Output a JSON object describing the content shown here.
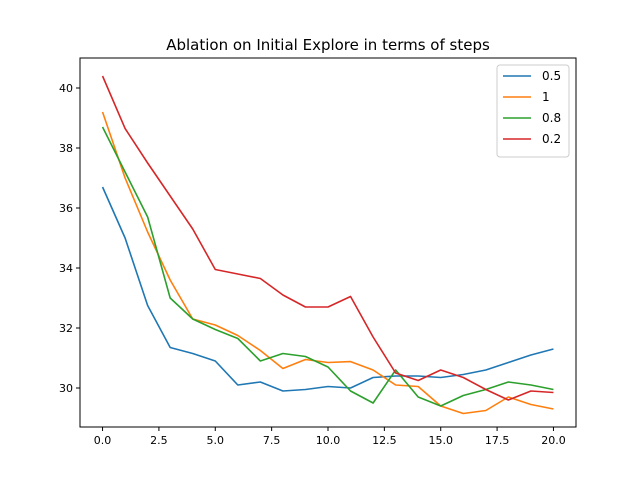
{
  "chart_data": {
    "type": "line",
    "title": "Ablation on Initial Explore in terms of steps",
    "xlabel": "",
    "ylabel": "",
    "xlim": [
      -1.0,
      21.0
    ],
    "ylim": [
      28.7,
      41.0
    ],
    "xticks": [
      0.0,
      2.5,
      5.0,
      7.5,
      10.0,
      12.5,
      15.0,
      17.5,
      20.0
    ],
    "xtick_labels": [
      "0.0",
      "2.5",
      "5.0",
      "7.5",
      "10.0",
      "12.5",
      "15.0",
      "17.5",
      "20.0"
    ],
    "yticks": [
      30,
      32,
      34,
      36,
      38,
      40
    ],
    "ytick_labels": [
      "30",
      "32",
      "34",
      "36",
      "38",
      "40"
    ],
    "grid": false,
    "legend_position": "top-right",
    "x": [
      0,
      1,
      2,
      3,
      4,
      5,
      6,
      7,
      8,
      9,
      10,
      11,
      12,
      13,
      14,
      15,
      16,
      17,
      18,
      19,
      20
    ],
    "series": [
      {
        "name": "0.5",
        "color": "#1f77b4",
        "values": [
          36.7,
          35.0,
          32.75,
          31.35,
          31.15,
          30.9,
          30.1,
          30.2,
          29.9,
          29.95,
          30.05,
          30.0,
          30.35,
          30.4,
          30.4,
          30.35,
          30.45,
          30.6,
          30.85,
          31.1,
          31.3
        ]
      },
      {
        "name": "1",
        "color": "#ff7f0e",
        "values": [
          39.2,
          37.0,
          35.2,
          33.6,
          32.3,
          32.1,
          31.75,
          31.25,
          30.65,
          30.95,
          30.85,
          30.88,
          30.6,
          30.1,
          30.05,
          29.4,
          29.15,
          29.25,
          29.7,
          29.45,
          29.3
        ]
      },
      {
        "name": "0.8",
        "color": "#2ca02c",
        "values": [
          38.7,
          37.2,
          35.7,
          33.0,
          32.3,
          31.95,
          31.65,
          30.9,
          31.15,
          31.05,
          30.7,
          29.9,
          29.5,
          30.6,
          29.7,
          29.4,
          29.75,
          29.95,
          30.2,
          30.1,
          29.95
        ]
      },
      {
        "name": "0.2",
        "color": "#d62728",
        "values": [
          40.4,
          38.65,
          37.5,
          36.4,
          35.3,
          33.95,
          33.8,
          33.65,
          33.1,
          32.7,
          32.7,
          33.05,
          31.7,
          30.5,
          30.25,
          30.6,
          30.35,
          29.95,
          29.6,
          29.9,
          29.85
        ]
      }
    ]
  }
}
